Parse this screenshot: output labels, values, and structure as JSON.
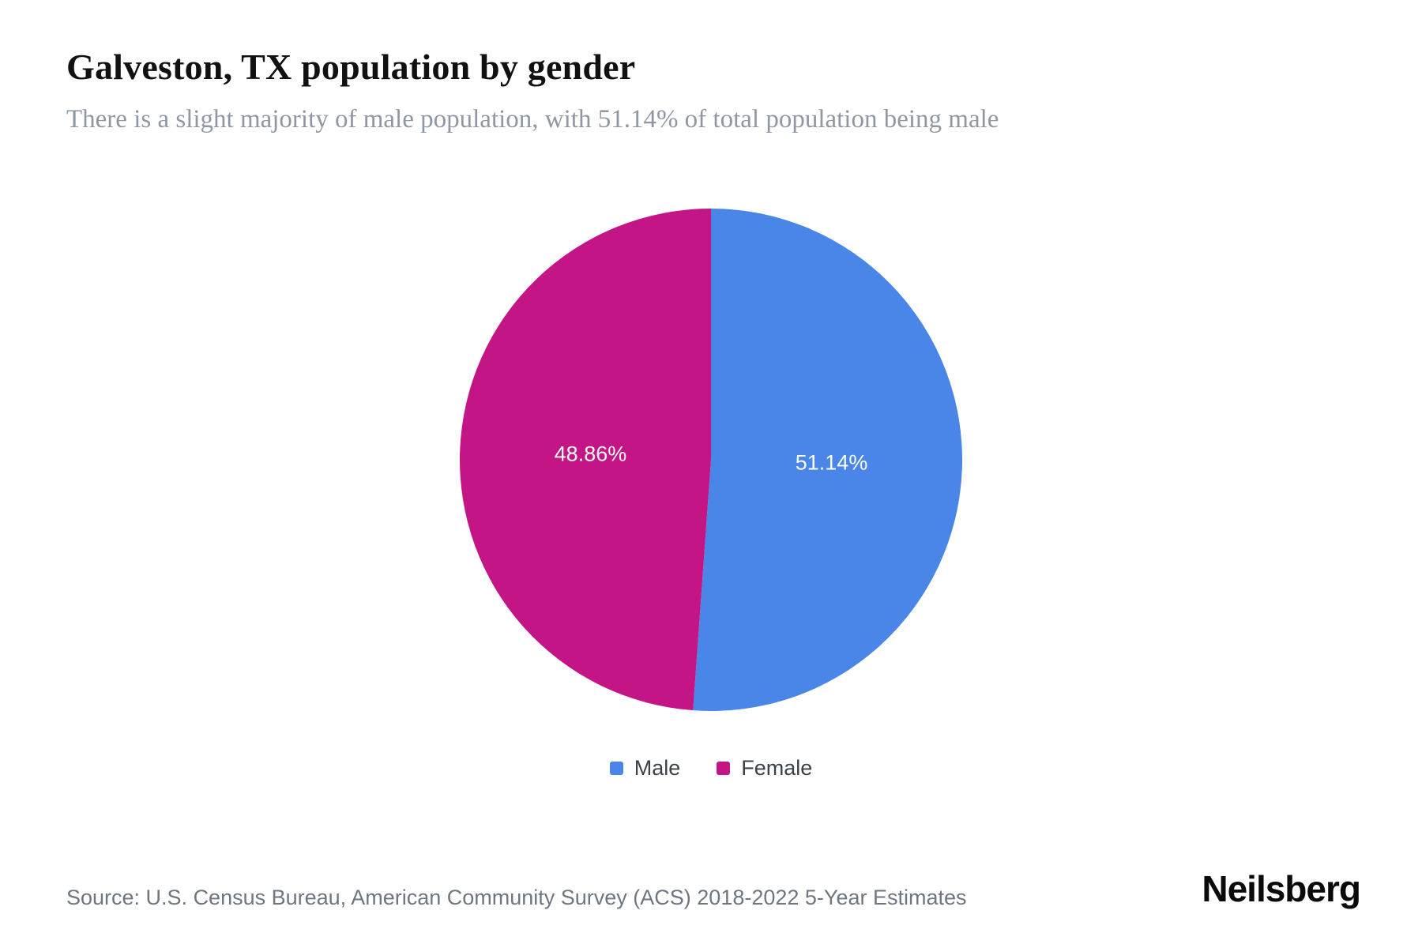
{
  "chart_data": {
    "type": "pie",
    "title": "Galveston, TX population by gender",
    "subtitle": "There is a slight majority of male population, with 51.14% of total population being male",
    "slices": [
      {
        "label": "Male",
        "value": 51.14,
        "data_label": "51.14%",
        "color": "#4a86e8"
      },
      {
        "label": "Female",
        "value": 48.86,
        "data_label": "48.86%",
        "color": "#c31585"
      }
    ],
    "start_angle_deg": -90,
    "direction": "clockwise",
    "legend_position": "bottom",
    "data_label_color": "#ffffff"
  },
  "source": "Source: U.S. Census Bureau, American Community Survey (ACS) 2018-2022 5-Year Estimates",
  "brand": "Neilsberg"
}
